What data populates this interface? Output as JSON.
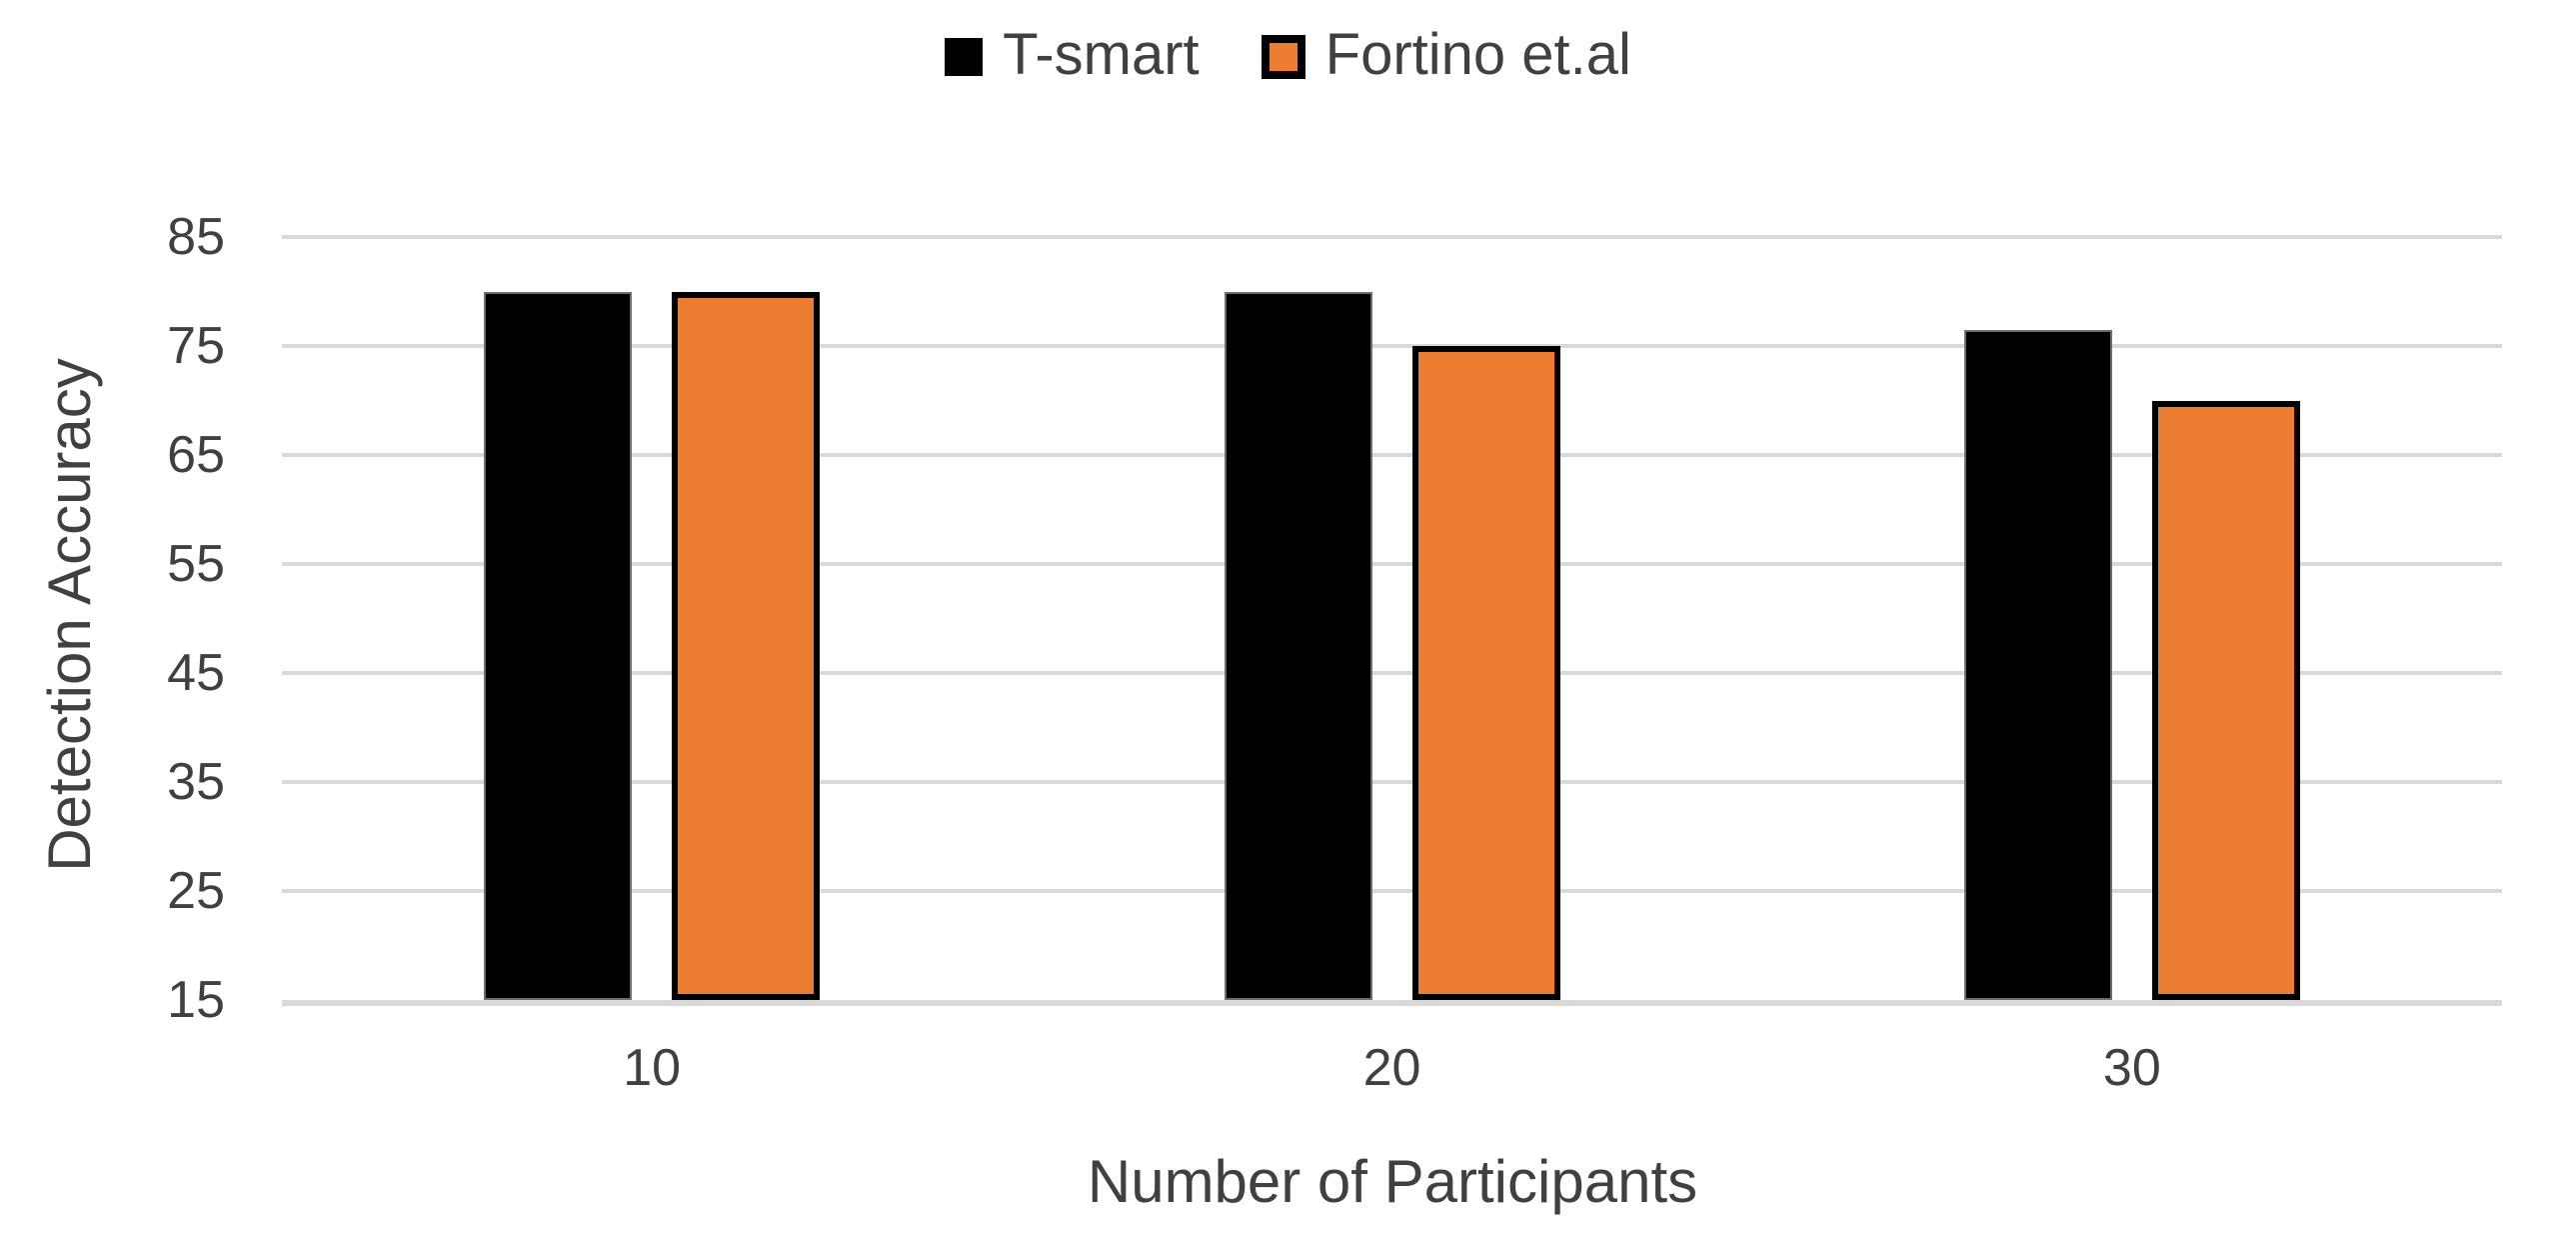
{
  "chart_data": {
    "type": "bar",
    "title": "",
    "categories": [
      "10",
      "20",
      "30"
    ],
    "series": [
      {
        "name": "T-smart",
        "color": "#000000",
        "values": [
          80,
          80,
          76.5
        ]
      },
      {
        "name": "Fortino et.al",
        "color": "#ED7D31",
        "values": [
          80,
          75,
          70
        ]
      }
    ],
    "xlabel": "Number of Participants",
    "ylabel": "Detection Accuracy",
    "ylim": [
      15,
      85
    ],
    "yticks": [
      15,
      25,
      35,
      45,
      55,
      65,
      75,
      85
    ],
    "grid": "horizontal",
    "legend_position": "top-center",
    "colors": {
      "gridline": "#d9d9d9",
      "axis_line": "#d9d9d9",
      "text": "#404040",
      "background": "#ffffff"
    }
  }
}
